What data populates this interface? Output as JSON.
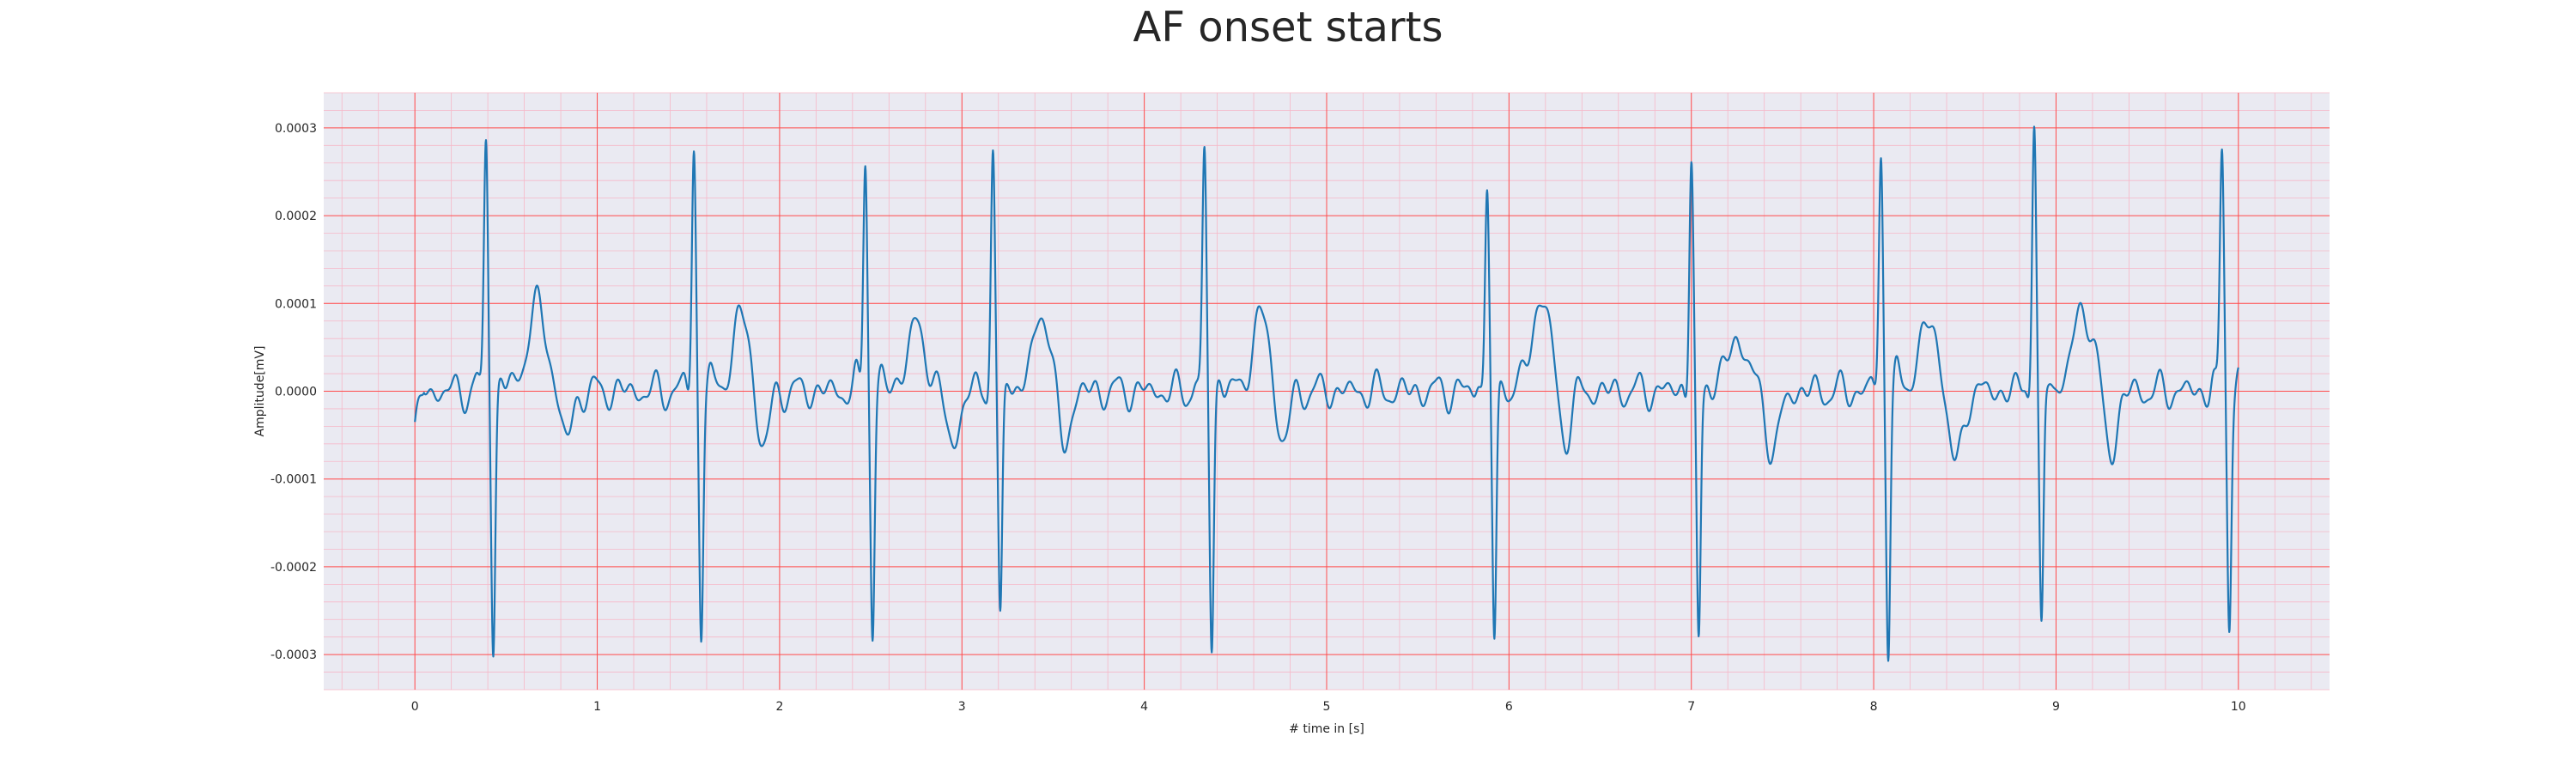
{
  "chart_data": {
    "type": "line",
    "title": "AF onset starts",
    "xlabel": "# time in [s]",
    "ylabel": "Amplitude[mV]",
    "xlim": [
      -0.5,
      10.5
    ],
    "ylim": [
      -0.00034,
      0.00034
    ],
    "xticks": [
      0,
      1,
      2,
      3,
      4,
      5,
      6,
      7,
      8,
      9,
      10
    ],
    "xtick_labels": [
      "0",
      "1",
      "2",
      "3",
      "4",
      "5",
      "6",
      "7",
      "8",
      "9",
      "10"
    ],
    "yticks": [
      0.0003,
      0.0002,
      0.0001,
      0.0,
      -0.0001,
      -0.0002,
      -0.0003
    ],
    "ytick_labels": [
      "0.0003",
      "0.0002",
      "0.0001",
      "0.0000",
      "-0.0001",
      "-0.0002",
      "-0.0003"
    ],
    "grid": true,
    "background": "#eaeaf2",
    "major_grid_color": "#ff4d4d",
    "minor_grid_color": "#f6b8c8",
    "line_color": "#1f77b4",
    "r_peaks": [
      {
        "t": 0.39,
        "peak": 0.000288,
        "trough": -0.000295
      },
      {
        "t": 1.53,
        "peak": 0.000276,
        "trough": -0.000276
      },
      {
        "t": 2.47,
        "peak": 0.000272,
        "trough": -0.000278
      },
      {
        "t": 3.17,
        "peak": 0.000274,
        "trough": -0.000268
      },
      {
        "t": 4.33,
        "peak": 0.000268,
        "trough": -0.000292
      },
      {
        "t": 5.88,
        "peak": 0.000238,
        "trough": -0.000303
      },
      {
        "t": 7.0,
        "peak": 0.00026,
        "trough": -0.000297
      },
      {
        "t": 8.04,
        "peak": 0.000264,
        "trough": -0.000287
      },
      {
        "t": 8.88,
        "peak": 0.000311,
        "trough": -0.000285
      },
      {
        "t": 9.91,
        "peak": 0.000271,
        "trough": -0.00026
      }
    ],
    "t_waves": [
      {
        "t": 0.67,
        "amp": 9.5e-05
      },
      {
        "t": 1.8,
        "amp": 8.5e-05
      },
      {
        "t": 2.75,
        "amp": 7e-05
      },
      {
        "t": 3.45,
        "amp": 9e-05
      },
      {
        "t": 4.65,
        "amp": 8.5e-05
      },
      {
        "t": 6.18,
        "amp": 0.000105
      },
      {
        "t": 7.25,
        "amp": 6e-05
      },
      {
        "t": 8.3,
        "amp": 7.5e-05
      },
      {
        "t": 9.15,
        "amp": 9.5e-05
      }
    ],
    "troughs": [
      {
        "t": 0.83,
        "amp": -5.5e-05
      },
      {
        "t": 1.9,
        "amp": -8e-05
      },
      {
        "t": 2.95,
        "amp": -6e-05
      },
      {
        "t": 3.55,
        "amp": -8e-05
      },
      {
        "t": 4.75,
        "amp": -7.5e-05
      },
      {
        "t": 6.3,
        "amp": -6e-05
      },
      {
        "t": 7.45,
        "amp": -7e-05
      },
      {
        "t": 8.45,
        "amp": -9e-05
      },
      {
        "t": 9.3,
        "amp": -7e-05
      }
    ],
    "start_value": -3.5e-05,
    "end_value": -5e-06
  }
}
